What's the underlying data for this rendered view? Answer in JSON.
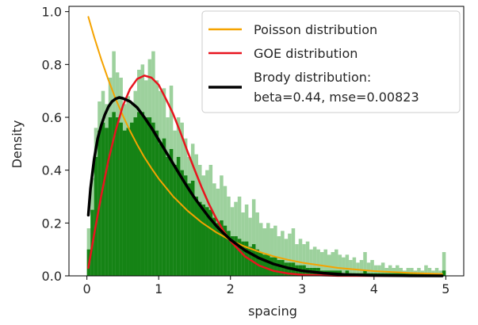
{
  "chart_data": {
    "type": "bar",
    "xlabel": "spacing",
    "ylabel": "Density",
    "xlim": [
      -0.25,
      5.25
    ],
    "ylim": [
      0.0,
      1.02
    ],
    "xticks": [
      "0",
      "1",
      "2",
      "3",
      "4",
      "5"
    ],
    "yticks": [
      "0.0",
      "0.2",
      "0.4",
      "0.6",
      "0.8",
      "1.0"
    ],
    "xtick_values": [
      0,
      1,
      2,
      3,
      4,
      5
    ],
    "ytick_values": [
      0.0,
      0.2,
      0.4,
      0.6,
      0.8,
      1.0
    ],
    "histograms": [
      {
        "name": "histogram (light)",
        "color": "#8cc98c",
        "bin_start": 0.0,
        "bin_width": 0.05,
        "values": [
          0.18,
          0.37,
          0.56,
          0.66,
          0.7,
          0.65,
          0.75,
          0.85,
          0.77,
          0.75,
          0.65,
          0.68,
          0.65,
          0.7,
          0.78,
          0.8,
          0.74,
          0.82,
          0.85,
          0.74,
          0.7,
          0.71,
          0.6,
          0.72,
          0.55,
          0.6,
          0.58,
          0.52,
          0.45,
          0.5,
          0.46,
          0.42,
          0.38,
          0.4,
          0.42,
          0.35,
          0.33,
          0.38,
          0.34,
          0.3,
          0.26,
          0.28,
          0.3,
          0.24,
          0.27,
          0.22,
          0.29,
          0.24,
          0.2,
          0.18,
          0.2,
          0.18,
          0.19,
          0.15,
          0.17,
          0.14,
          0.16,
          0.18,
          0.12,
          0.14,
          0.12,
          0.13,
          0.1,
          0.11,
          0.1,
          0.09,
          0.1,
          0.08,
          0.09,
          0.1,
          0.08,
          0.07,
          0.08,
          0.06,
          0.07,
          0.05,
          0.06,
          0.09,
          0.05,
          0.06,
          0.04,
          0.04,
          0.05,
          0.03,
          0.04,
          0.03,
          0.04,
          0.03,
          0.02,
          0.03,
          0.03,
          0.02,
          0.03,
          0.02,
          0.04,
          0.03,
          0.02,
          0.03,
          0.02,
          0.09
        ]
      },
      {
        "name": "histogram (dark)",
        "color": "#0e7e0e",
        "bin_start": 0.0,
        "bin_width": 0.05,
        "values": [
          0.1,
          0.25,
          0.45,
          0.55,
          0.58,
          0.56,
          0.6,
          0.62,
          0.6,
          0.58,
          0.55,
          0.56,
          0.58,
          0.6,
          0.62,
          0.62,
          0.6,
          0.6,
          0.58,
          0.55,
          0.5,
          0.52,
          0.45,
          0.48,
          0.42,
          0.45,
          0.4,
          0.38,
          0.35,
          0.36,
          0.3,
          0.28,
          0.27,
          0.26,
          0.25,
          0.22,
          0.2,
          0.21,
          0.19,
          0.17,
          0.15,
          0.15,
          0.14,
          0.13,
          0.13,
          0.11,
          0.12,
          0.1,
          0.09,
          0.08,
          0.08,
          0.07,
          0.07,
          0.06,
          0.06,
          0.05,
          0.05,
          0.05,
          0.04,
          0.04,
          0.04,
          0.03,
          0.03,
          0.03,
          0.03,
          0.02,
          0.02,
          0.02,
          0.02,
          0.02,
          0.02,
          0.01,
          0.02,
          0.01,
          0.01,
          0.01,
          0.01,
          0.02,
          0.01,
          0.01,
          0.01,
          0.01,
          0.01,
          0.01,
          0.01,
          0.01,
          0.01,
          0.01,
          0.01,
          0.01,
          0.01,
          0.01,
          0.01,
          0.01,
          0.01,
          0.01,
          0.01,
          0.01,
          0.01,
          0.02
        ]
      }
    ],
    "series": [
      {
        "name": "Poisson distribution",
        "color": "#f5a300",
        "x": [
          0.02,
          0.1,
          0.2,
          0.3,
          0.4,
          0.5,
          0.6,
          0.7,
          0.8,
          0.9,
          1.0,
          1.2,
          1.4,
          1.6,
          1.8,
          2.0,
          2.2,
          2.4,
          2.6,
          2.8,
          3.0,
          3.5,
          4.0,
          4.5,
          4.95
        ],
        "values": [
          0.98,
          0.905,
          0.819,
          0.741,
          0.67,
          0.607,
          0.549,
          0.497,
          0.449,
          0.407,
          0.368,
          0.301,
          0.247,
          0.202,
          0.165,
          0.135,
          0.111,
          0.091,
          0.074,
          0.061,
          0.05,
          0.03,
          0.018,
          0.011,
          0.007
        ]
      },
      {
        "name": "GOE distribution",
        "color": "#e8141e",
        "x": [
          0.02,
          0.1,
          0.2,
          0.3,
          0.4,
          0.5,
          0.6,
          0.7,
          0.8,
          0.9,
          1.0,
          1.1,
          1.2,
          1.3,
          1.4,
          1.5,
          1.6,
          1.7,
          1.8,
          1.9,
          2.0,
          2.2,
          2.4,
          2.6,
          2.8,
          3.0,
          3.5,
          4.0,
          4.5,
          4.95
        ],
        "values": [
          0.03,
          0.156,
          0.304,
          0.438,
          0.549,
          0.643,
          0.707,
          0.745,
          0.758,
          0.75,
          0.723,
          0.67,
          0.614,
          0.545,
          0.472,
          0.402,
          0.334,
          0.272,
          0.218,
          0.171,
          0.132,
          0.074,
          0.039,
          0.019,
          0.009,
          0.004,
          0.0004,
          0.0,
          0.0,
          0.0
        ]
      },
      {
        "name": "Brody distribution:\nbeta=0.44, mse=0.00823",
        "label_lines": [
          "Brody distribution:",
          "beta=0.44, mse=0.00823"
        ],
        "color": "#000000",
        "x": [
          0.02,
          0.05,
          0.1,
          0.15,
          0.2,
          0.25,
          0.3,
          0.35,
          0.4,
          0.45,
          0.5,
          0.6,
          0.7,
          0.8,
          0.9,
          1.0,
          1.1,
          1.2,
          1.3,
          1.4,
          1.5,
          1.6,
          1.7,
          1.8,
          1.9,
          2.0,
          2.2,
          2.4,
          2.6,
          2.8,
          3.0,
          3.3,
          3.6,
          4.0,
          4.5,
          4.95
        ],
        "values": [
          0.23,
          0.33,
          0.44,
          0.52,
          0.57,
          0.61,
          0.64,
          0.66,
          0.67,
          0.675,
          0.672,
          0.66,
          0.637,
          0.6,
          0.56,
          0.515,
          0.47,
          0.425,
          0.38,
          0.336,
          0.295,
          0.258,
          0.222,
          0.19,
          0.162,
          0.137,
          0.097,
          0.067,
          0.045,
          0.03,
          0.019,
          0.01,
          0.005,
          0.002,
          0.0005,
          0.0
        ]
      }
    ],
    "legend": {
      "placement": "top-right",
      "entries": [
        "Poisson distribution",
        "GOE distribution",
        "Brody distribution:",
        "beta=0.44, mse=0.00823"
      ]
    },
    "grid": false
  }
}
